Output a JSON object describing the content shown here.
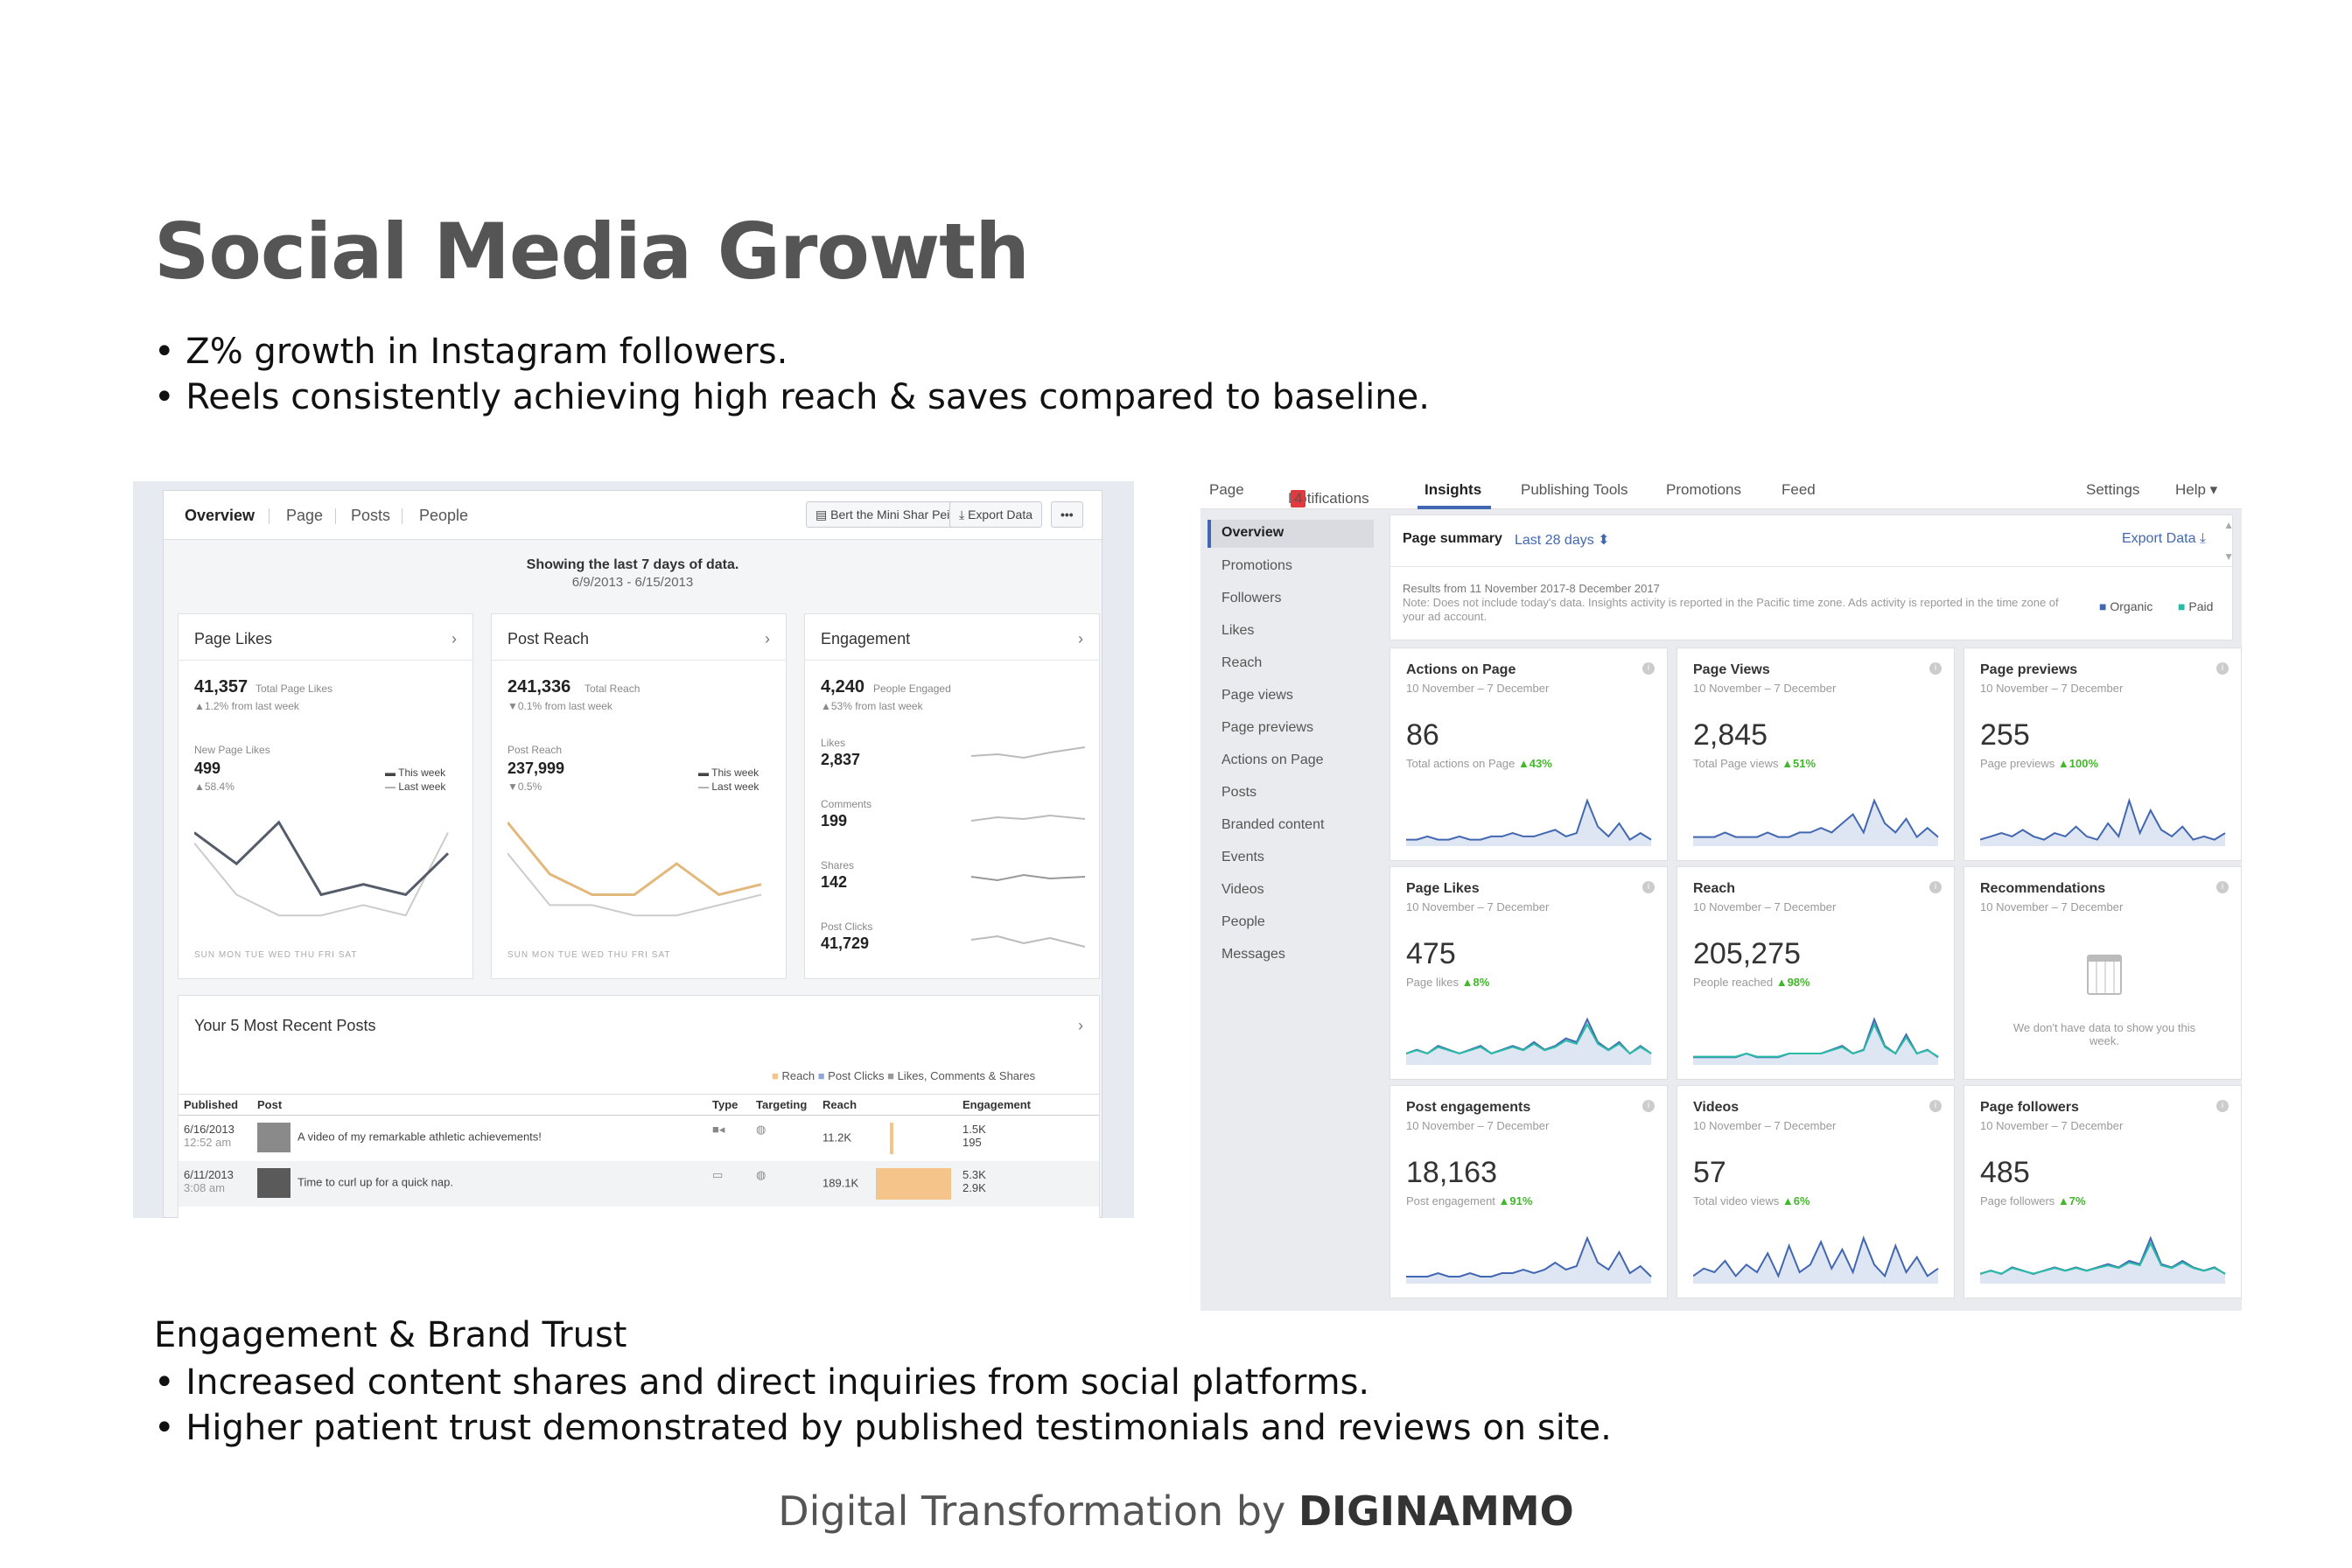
{
  "title": "Social Media Growth",
  "bullets_top": [
    "• Z% growth in Instagram followers.",
    "• Reels consistently achieving high reach & saves compared to baseline."
  ],
  "engagement_title": "Engagement & Brand Trust",
  "bullets_bottom": [
    "• Increased content shares and direct inquiries from social platforms.",
    "• Higher patient trust demonstrated by published testimonials and reviews on site."
  ],
  "footer": {
    "prefix": "Digital Transformation by ",
    "brand": "DIGINAMMO"
  },
  "left_shot": {
    "tabs": [
      "Overview",
      "Page",
      "Posts",
      "People"
    ],
    "page_button": "Bert the Mini Shar Pei",
    "export_button": "Export Data",
    "more_button": "•••",
    "notice": "Showing the last 7 days of data.",
    "date_range": "6/9/2013 - 6/15/2013",
    "days": "SUN MON TUE WED THU FRI SAT",
    "page_likes": {
      "header": "Page Likes",
      "total": "41,357",
      "total_label": "Total Page Likes",
      "change": "▲1.2% from last week",
      "sub_label": "New Page Likes",
      "sub_value": "499",
      "sub_change": "▲58.4%",
      "legend_this": "This week",
      "legend_last": "Last week",
      "this_week": [
        9,
        6,
        10,
        3,
        4,
        3,
        7
      ],
      "last_week": [
        8,
        3,
        1,
        1,
        2,
        1,
        9
      ]
    },
    "post_reach": {
      "header": "Post Reach",
      "total": "241,336",
      "total_label": "Total Reach",
      "change": "▼0.1% from last week",
      "sub_label": "Post Reach",
      "sub_value": "237,999",
      "sub_change": "▼0.5%",
      "legend_this": "This week",
      "legend_last": "Last week",
      "this_week": [
        10,
        5,
        3,
        3,
        6,
        3,
        4
      ],
      "last_week": [
        7,
        2,
        2,
        1,
        1,
        2,
        3
      ]
    },
    "engagement": {
      "header": "Engagement",
      "total": "4,240",
      "total_label": "People Engaged",
      "change": "▲53% from last week",
      "metrics": [
        {
          "label": "Likes",
          "value": "2,837"
        },
        {
          "label": "Comments",
          "value": "199"
        },
        {
          "label": "Shares",
          "value": "142"
        },
        {
          "label": "Post Clicks",
          "value": "41,729"
        }
      ]
    },
    "recent_posts": {
      "header": "Your 5 Most Recent Posts",
      "legend": [
        "Reach",
        "Post Clicks",
        "Likes, Comments & Shares"
      ],
      "columns": [
        "Published",
        "Post",
        "Type",
        "Targeting",
        "Reach",
        "Engagement"
      ],
      "rows": [
        {
          "date": "6/16/2013",
          "time": "12:52 am",
          "post": "A video of my remarkable athletic achievements!",
          "reach": "11.2K",
          "eng1": "1.5K",
          "eng2": "195"
        },
        {
          "date": "6/11/2013",
          "time": "3:08 am",
          "post": "Time to curl up for a quick nap.",
          "reach": "189.1K",
          "eng1": "5.3K",
          "eng2": "2.9K"
        }
      ]
    }
  },
  "right_shot": {
    "nav": [
      "Page",
      "Notifications",
      "Insights",
      "Publishing Tools",
      "Promotions",
      "Feed",
      "Settings",
      "Help ▾"
    ],
    "notif_badge": "4",
    "sidebar": [
      "Overview",
      "Promotions",
      "Followers",
      "Likes",
      "Reach",
      "Page views",
      "Page previews",
      "Actions on Page",
      "Posts",
      "Branded content",
      "Events",
      "Videos",
      "People",
      "Messages"
    ],
    "summary": {
      "label": "Page summary",
      "range": "Last 28 days ⬍",
      "export": "Export Data ⤓",
      "results": "Results from 11 November 2017-8 December 2017",
      "note": "Note: Does not include today's data. Insights activity is reported in the Pacific time zone. Ads activity is reported in the time zone of your ad account.",
      "legend_organic": "Organic",
      "legend_paid": "Paid",
      "color_organic": "#4267b2",
      "color_paid": "#2abba7"
    },
    "tiles": [
      {
        "title": "Actions on Page",
        "date": "10 November – 7 December",
        "value": "86",
        "sub": "Total actions on Page",
        "change": "▲43%",
        "series": [
          2,
          2,
          3,
          2,
          2,
          3,
          2,
          2,
          3,
          3,
          4,
          3,
          3,
          4,
          5,
          3,
          4,
          14,
          6,
          3,
          7,
          2,
          4,
          2
        ]
      },
      {
        "title": "Page Views",
        "date": "10 November – 7 December",
        "value": "2,845",
        "sub": "Total Page views",
        "change": "▲51%",
        "series": [
          2,
          2,
          2,
          3,
          2,
          2,
          2,
          3,
          2,
          2,
          3,
          3,
          4,
          3,
          5,
          7,
          3,
          10,
          5,
          3,
          6,
          2,
          4,
          2
        ]
      },
      {
        "title": "Page previews",
        "date": "10 November – 7 December",
        "value": "255",
        "sub": "Page previews",
        "change": "▲100%",
        "series": [
          2,
          3,
          4,
          3,
          5,
          3,
          2,
          4,
          3,
          6,
          3,
          2,
          7,
          3,
          14,
          4,
          11,
          5,
          3,
          6,
          2,
          3,
          2,
          4
        ]
      },
      {
        "title": "Page Likes",
        "date": "10 November – 7 December",
        "value": "475",
        "sub": "Page likes",
        "change": "▲8%",
        "series": [
          3,
          4,
          3,
          5,
          4,
          3,
          4,
          5,
          3,
          4,
          5,
          4,
          6,
          4,
          5,
          7,
          6,
          12,
          6,
          4,
          6,
          3,
          5,
          3
        ]
      },
      {
        "title": "Reach",
        "date": "10 November – 7 December",
        "value": "205,275",
        "sub": "People reached",
        "change": "▲98%",
        "series": [
          2,
          2,
          2,
          2,
          2,
          3,
          2,
          2,
          2,
          3,
          3,
          3,
          3,
          4,
          5,
          3,
          4,
          12,
          5,
          3,
          8,
          3,
          4,
          2
        ]
      },
      {
        "title": "Recommendations",
        "date": "10 November – 7 December",
        "value": "",
        "sub": "",
        "change": "",
        "empty": "We don't have data to show you this week.",
        "series": []
      },
      {
        "title": "Post engagements",
        "date": "10 November – 7 December",
        "value": "18,163",
        "sub": "Post engagement",
        "change": "▲91%",
        "series": [
          2,
          2,
          2,
          3,
          2,
          2,
          3,
          2,
          2,
          3,
          3,
          4,
          3,
          4,
          6,
          4,
          5,
          13,
          6,
          4,
          9,
          3,
          5,
          2
        ]
      },
      {
        "title": "Videos",
        "date": "10 November – 7 December",
        "value": "57",
        "sub": "Total video views",
        "change": "▲6%",
        "series": [
          2,
          4,
          3,
          6,
          2,
          5,
          3,
          8,
          2,
          10,
          3,
          5,
          11,
          4,
          9,
          3,
          12,
          5,
          2,
          10,
          3,
          7,
          2,
          4
        ]
      },
      {
        "title": "Page followers",
        "date": "10 November – 7 December",
        "value": "485",
        "sub": "Page followers",
        "change": "▲7%",
        "series": [
          3,
          4,
          3,
          5,
          4,
          3,
          4,
          5,
          4,
          5,
          4,
          5,
          6,
          5,
          7,
          6,
          14,
          6,
          5,
          7,
          5,
          4,
          5,
          3
        ]
      }
    ]
  }
}
